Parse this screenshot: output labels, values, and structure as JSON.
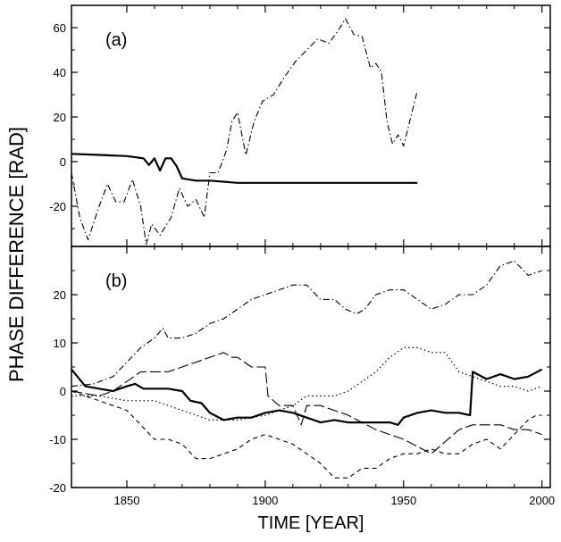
{
  "figure": {
    "ylabel": "PHASE DIFFERENCE [RAD]",
    "xlabel": "TIME [YEAR]"
  },
  "chart_data": [
    {
      "panel_label": "(a)",
      "type": "line",
      "xlim": [
        1830,
        2003
      ],
      "ylim": [
        -38,
        70
      ],
      "yticks": [
        -20,
        0,
        20,
        40,
        60
      ],
      "xticks": [
        1850,
        1900,
        1950,
        2000
      ],
      "show_xticklabels": false,
      "series": [
        {
          "style": "solid",
          "x": [
            1830,
            1840,
            1850,
            1856,
            1858,
            1860,
            1862,
            1864,
            1866,
            1868,
            1870,
            1875,
            1880,
            1885,
            1890,
            1900,
            1910,
            1920,
            1930,
            1940,
            1950,
            1955
          ],
          "y": [
            3.5,
            3,
            2.5,
            1.5,
            -1.5,
            1.5,
            -4,
            1.5,
            1.5,
            -2,
            -7.5,
            -8.5,
            -8.5,
            -9,
            -9.5,
            -9.5,
            -9.5,
            -9.5,
            -9.5,
            -9.5,
            -9.5,
            -9.5
          ]
        },
        {
          "style": "dashdot",
          "x": [
            1830,
            1833,
            1836,
            1840,
            1843,
            1846,
            1849,
            1852,
            1855,
            1857,
            1859,
            1862,
            1866,
            1869,
            1872,
            1875,
            1878,
            1880,
            1883,
            1886,
            1888,
            1890,
            1893,
            1896,
            1899,
            1903,
            1907,
            1911,
            1915,
            1919,
            1923,
            1926,
            1929,
            1932,
            1935,
            1938,
            1940,
            1942,
            1944,
            1946,
            1948,
            1950,
            1953,
            1955
          ],
          "y": [
            -5,
            -25,
            -35,
            -20,
            -10,
            -18,
            -18,
            -8,
            -20,
            -37,
            -28,
            -33,
            -25,
            -12,
            -20,
            -17,
            -25,
            -5,
            -5,
            5,
            18,
            22,
            3,
            18,
            27,
            30,
            38,
            45,
            50,
            55,
            53,
            58,
            64,
            57,
            56,
            42,
            44,
            40,
            18,
            8,
            12,
            7,
            22,
            32
          ]
        }
      ]
    },
    {
      "panel_label": "(b)",
      "type": "line",
      "xlim": [
        1830,
        2003
      ],
      "ylim": [
        -20,
        30
      ],
      "yticks": [
        -20,
        -10,
        0,
        10,
        20
      ],
      "xticks": [
        1850,
        1900,
        1950,
        2000
      ],
      "show_xticklabels": true,
      "series": [
        {
          "style": "solid",
          "x": [
            1830,
            1835,
            1840,
            1845,
            1850,
            1853,
            1856,
            1860,
            1865,
            1870,
            1873,
            1877,
            1880,
            1885,
            1890,
            1895,
            1900,
            1905,
            1910,
            1915,
            1920,
            1925,
            1930,
            1935,
            1940,
            1945,
            1948,
            1950,
            1955,
            1960,
            1965,
            1970,
            1974,
            1975,
            1980,
            1985,
            1990,
            1995,
            2000
          ],
          "y": [
            4.5,
            1,
            0.5,
            0,
            1,
            1.5,
            0.5,
            0.5,
            0.5,
            0,
            -2,
            -2.5,
            -4.5,
            -6,
            -5.5,
            -5.5,
            -4.5,
            -4,
            -4.5,
            -5.5,
            -6.5,
            -6,
            -6.5,
            -6.5,
            -6.5,
            -6.5,
            -7,
            -5.5,
            -4.5,
            -4,
            -4.5,
            -4.5,
            -5,
            4,
            2.5,
            3.5,
            2.5,
            3,
            4.5
          ]
        },
        {
          "style": "dashdot",
          "x": [
            1830,
            1838,
            1845,
            1850,
            1855,
            1860,
            1863,
            1865,
            1870,
            1875,
            1880,
            1885,
            1890,
            1895,
            1900,
            1905,
            1910,
            1915,
            1920,
            1925,
            1929,
            1933,
            1936,
            1940,
            1945,
            1950,
            1955,
            1960,
            1965,
            1970,
            1975,
            1980,
            1985,
            1990,
            1995,
            2000
          ],
          "y": [
            1,
            1.5,
            3,
            6,
            9,
            11,
            13,
            11,
            11,
            12,
            14,
            15,
            17,
            19,
            20,
            21,
            22,
            22,
            19,
            19,
            17,
            16,
            17,
            20,
            21,
            21,
            19,
            17,
            18,
            20,
            20,
            22,
            26,
            27,
            24,
            25
          ]
        },
        {
          "style": "longdash",
          "x": [
            1830,
            1840,
            1845,
            1850,
            1855,
            1860,
            1865,
            1870,
            1875,
            1880,
            1885,
            1888,
            1890,
            1895,
            1900,
            1901,
            1905,
            1910,
            1913,
            1915,
            1920,
            1930,
            1940,
            1950,
            1960,
            1970,
            1975,
            1980,
            1985,
            1990,
            1995,
            2000
          ],
          "y": [
            0,
            -1,
            0,
            2,
            4,
            4,
            4,
            5,
            6,
            7,
            8,
            7,
            7,
            5,
            5,
            -1,
            -3,
            -3,
            -7,
            -3,
            -3,
            -5,
            -8,
            -10,
            -13,
            -8,
            -7,
            -7,
            -7,
            -8,
            -8,
            -9
          ]
        },
        {
          "style": "dashed",
          "x": [
            1830,
            1835,
            1840,
            1845,
            1850,
            1855,
            1860,
            1865,
            1870,
            1875,
            1880,
            1885,
            1890,
            1895,
            1900,
            1905,
            1910,
            1915,
            1920,
            1925,
            1930,
            1935,
            1940,
            1945,
            1950,
            1955,
            1960,
            1965,
            1970,
            1975,
            1980,
            1985,
            1990,
            1995,
            1998,
            2000
          ],
          "y": [
            0,
            -1,
            -2,
            -3,
            -4,
            -7,
            -10,
            -10,
            -11,
            -14,
            -14,
            -13,
            -12,
            -10,
            -9,
            -10,
            -11,
            -13,
            -15,
            -18,
            -18,
            -16,
            -16,
            -14,
            -13,
            -13,
            -12,
            -13,
            -13,
            -11,
            -10,
            -12,
            -9,
            -6,
            -5,
            -5
          ]
        },
        {
          "style": "dotted",
          "x": [
            1830,
            1840,
            1850,
            1860,
            1870,
            1880,
            1890,
            1900,
            1905,
            1910,
            1915,
            1920,
            1925,
            1930,
            1935,
            1940,
            1945,
            1950,
            1955,
            1960,
            1965,
            1970,
            1975,
            1980,
            1985,
            1990,
            1995,
            2000
          ],
          "y": [
            -1,
            -1,
            -2,
            -2,
            -4,
            -6,
            -6,
            -5,
            -4,
            -3,
            -1,
            -1,
            -1,
            0,
            2,
            4,
            7,
            9,
            9,
            8,
            8,
            4,
            3,
            2,
            1,
            1,
            0,
            1
          ]
        }
      ]
    }
  ]
}
